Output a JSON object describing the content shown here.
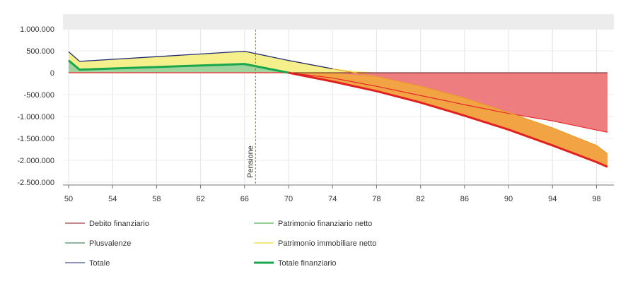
{
  "chart_data": {
    "type": "area",
    "x": [
      50,
      51,
      66,
      70,
      74,
      78,
      82,
      86,
      90,
      94,
      98,
      99
    ],
    "xlim": [
      50,
      99.5
    ],
    "ylim": [
      -2500000,
      1350000
    ],
    "x_ticks": [
      50,
      54,
      58,
      62,
      66,
      70,
      74,
      78,
      82,
      86,
      90,
      94,
      98
    ],
    "y_ticks": [
      1000000,
      500000,
      0,
      -500000,
      -1000000,
      -1500000,
      -2000000,
      -2500000
    ],
    "x_tick_labels": [
      "50",
      "54",
      "58",
      "62",
      "66",
      "70",
      "74",
      "78",
      "82",
      "86",
      "90",
      "94",
      "98"
    ],
    "y_tick_labels": [
      "1.000.000",
      "500.000",
      "0",
      "-500.000",
      "-1.000.000",
      "-1.500.000",
      "-2.000.000",
      "-2.500.000"
    ],
    "grid": true,
    "legend_position": "bottom",
    "annotation": {
      "label": "Pensione",
      "x": 67
    },
    "series": [
      {
        "name": "Debito finanziario",
        "color": "#e8282b",
        "fill": "#ee7d80",
        "values": [
          0,
          0,
          0,
          0,
          -120000,
          -310000,
          -520000,
          -730000,
          -930000,
          -1100000,
          -1310000,
          -1360000
        ]
      },
      {
        "name": "Patrimonio finanziario netto",
        "color": "#2ca02c",
        "fill": null,
        "values": [
          280000,
          70000,
          200000,
          0,
          0,
          0,
          0,
          0,
          0,
          0,
          0,
          0
        ]
      },
      {
        "name": "Plusvalenze",
        "color": "#1a7a3a",
        "fill": "#9fd49c",
        "values": [
          280000,
          70000,
          200000,
          0,
          0,
          0,
          0,
          0,
          0,
          0,
          0,
          0
        ]
      },
      {
        "name": "Patrimonio immobiliare netto",
        "color": "#e8d800",
        "fill_above": "#f5ef8c",
        "fill_below": "#f2a444",
        "values": [
          480000,
          260000,
          490000,
          280000,
          90000,
          -90000,
          -310000,
          -580000,
          -910000,
          -1260000,
          -1660000,
          -1850000
        ]
      },
      {
        "name": "Totale",
        "color": "#1f2a6e",
        "fill": null,
        "values": [
          480000,
          260000,
          490000,
          280000,
          90000,
          -90000,
          -310000,
          -580000,
          -910000,
          -1260000,
          -1660000,
          -1850000
        ]
      },
      {
        "name": "Totale finanziario",
        "color": "#e02020",
        "color_positive": "#1aa64a",
        "fill": null,
        "values": [
          280000,
          70000,
          200000,
          0,
          -200000,
          -420000,
          -680000,
          -980000,
          -1300000,
          -1660000,
          -2040000,
          -2150000
        ]
      }
    ]
  },
  "legend": {
    "items": [
      {
        "label": "Debito finanziario",
        "color": "#8b1a1a",
        "thick": false
      },
      {
        "label": "Patrimonio finanziario netto",
        "color": "#2ca02c",
        "thick": false
      },
      {
        "label": "Plusvalenze",
        "color": "#1a7a3a",
        "thick": false
      },
      {
        "label": "Patrimonio immobiliare netto",
        "color": "#e8d800",
        "thick": false
      },
      {
        "label": "Totale",
        "color": "#1f2a6e",
        "thick": false
      },
      {
        "label": "Totale finanziario",
        "color": "#1aa64a",
        "thick": true
      }
    ]
  }
}
